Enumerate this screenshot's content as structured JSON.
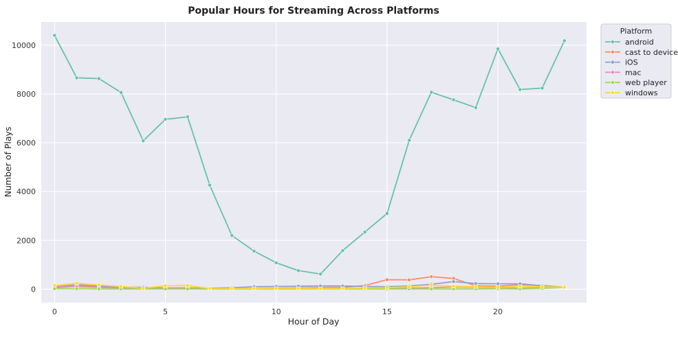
{
  "chart_data": {
    "type": "line",
    "title": "Popular Hours for Streaming Across Platforms",
    "xlabel": "Hour of Day",
    "ylabel": "Number of Plays",
    "xlim": [
      -0.6,
      24
    ],
    "ylim": [
      -550,
      10950
    ],
    "xticks": [
      0,
      5,
      10,
      15,
      20
    ],
    "yticks": [
      0,
      2000,
      4000,
      6000,
      8000,
      10000
    ],
    "grid": true,
    "legend": {
      "title": "Platform",
      "placement": "outside-top-right"
    },
    "x": [
      0,
      1,
      2,
      3,
      4,
      5,
      6,
      7,
      8,
      9,
      10,
      11,
      12,
      13,
      14,
      15,
      16,
      17,
      18,
      19,
      20,
      21,
      22,
      23
    ],
    "series": [
      {
        "name": "android",
        "color": "#66c2a5",
        "values": [
          10400,
          8660,
          8630,
          8060,
          6080,
          6960,
          7060,
          4260,
          2200,
          1560,
          1080,
          760,
          620,
          1580,
          2340,
          3100,
          6100,
          8070,
          7760,
          7440,
          9850,
          8180,
          8240,
          10180
        ]
      },
      {
        "name": "cast to device",
        "color": "#fc8d62",
        "values": [
          60,
          120,
          90,
          60,
          30,
          30,
          20,
          10,
          20,
          30,
          40,
          50,
          60,
          70,
          150,
          390,
          380,
          510,
          440,
          140,
          120,
          180,
          150,
          80
        ]
      },
      {
        "name": "iOS",
        "color": "#8da0cb",
        "values": [
          100,
          180,
          130,
          80,
          80,
          50,
          50,
          40,
          60,
          100,
          110,
          120,
          130,
          130,
          110,
          100,
          130,
          200,
          310,
          230,
          220,
          220,
          140,
          80
        ]
      },
      {
        "name": "mac",
        "color": "#e78ac3",
        "values": [
          120,
          100,
          70,
          50,
          20,
          40,
          30,
          20,
          20,
          20,
          20,
          20,
          20,
          30,
          30,
          40,
          40,
          60,
          90,
          80,
          60,
          40,
          60,
          70
        ]
      },
      {
        "name": "web player",
        "color": "#a6d854",
        "values": [
          20,
          20,
          10,
          10,
          10,
          10,
          10,
          10,
          10,
          10,
          10,
          10,
          10,
          10,
          10,
          10,
          10,
          10,
          10,
          10,
          20,
          10,
          30,
          70
        ]
      },
      {
        "name": "windows",
        "color": "#ffd92f",
        "values": [
          150,
          240,
          170,
          110,
          40,
          140,
          150,
          30,
          30,
          30,
          30,
          30,
          20,
          30,
          50,
          60,
          100,
          160,
          120,
          100,
          80,
          110,
          100,
          80
        ]
      }
    ]
  }
}
